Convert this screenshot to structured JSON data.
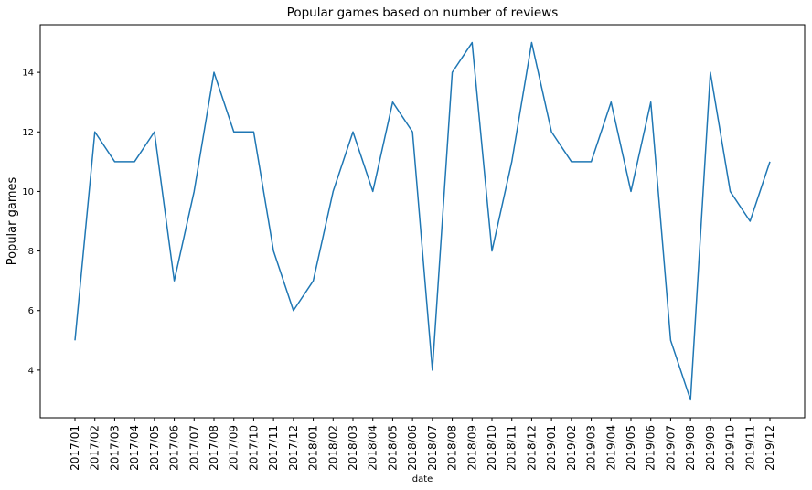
{
  "chart_data": {
    "type": "line",
    "title": "Popular games based on number of reviews",
    "xlabel": "date",
    "ylabel": "Popular games",
    "ylim": [
      2.4,
      15.6
    ],
    "yticks": [
      4,
      6,
      8,
      10,
      12,
      14
    ],
    "grid": false,
    "legend": "none",
    "colors": {
      "series": "#1f77b4",
      "axis": "#000000",
      "background": "#ffffff"
    },
    "x": [
      "2017/01",
      "2017/02",
      "2017/03",
      "2017/04",
      "2017/05",
      "2017/06",
      "2017/07",
      "2017/08",
      "2017/09",
      "2017/10",
      "2017/11",
      "2017/12",
      "2018/01",
      "2018/02",
      "2018/03",
      "2018/04",
      "2018/05",
      "2018/06",
      "2018/07",
      "2018/08",
      "2018/09",
      "2018/10",
      "2018/11",
      "2018/12",
      "2019/01",
      "2019/02",
      "2019/03",
      "2019/04",
      "2019/05",
      "2019/06",
      "2019/07",
      "2019/08",
      "2019/09",
      "2019/10",
      "2019/11",
      "2019/12"
    ],
    "series": [
      {
        "values": [
          5,
          12,
          11,
          11,
          12,
          7,
          10,
          14,
          12,
          12,
          8,
          6,
          7,
          10,
          12,
          10,
          13,
          12,
          4,
          14,
          15,
          8,
          11,
          15,
          12,
          11,
          11,
          13,
          10,
          13,
          5,
          3,
          14,
          10,
          9,
          11
        ]
      }
    ]
  }
}
